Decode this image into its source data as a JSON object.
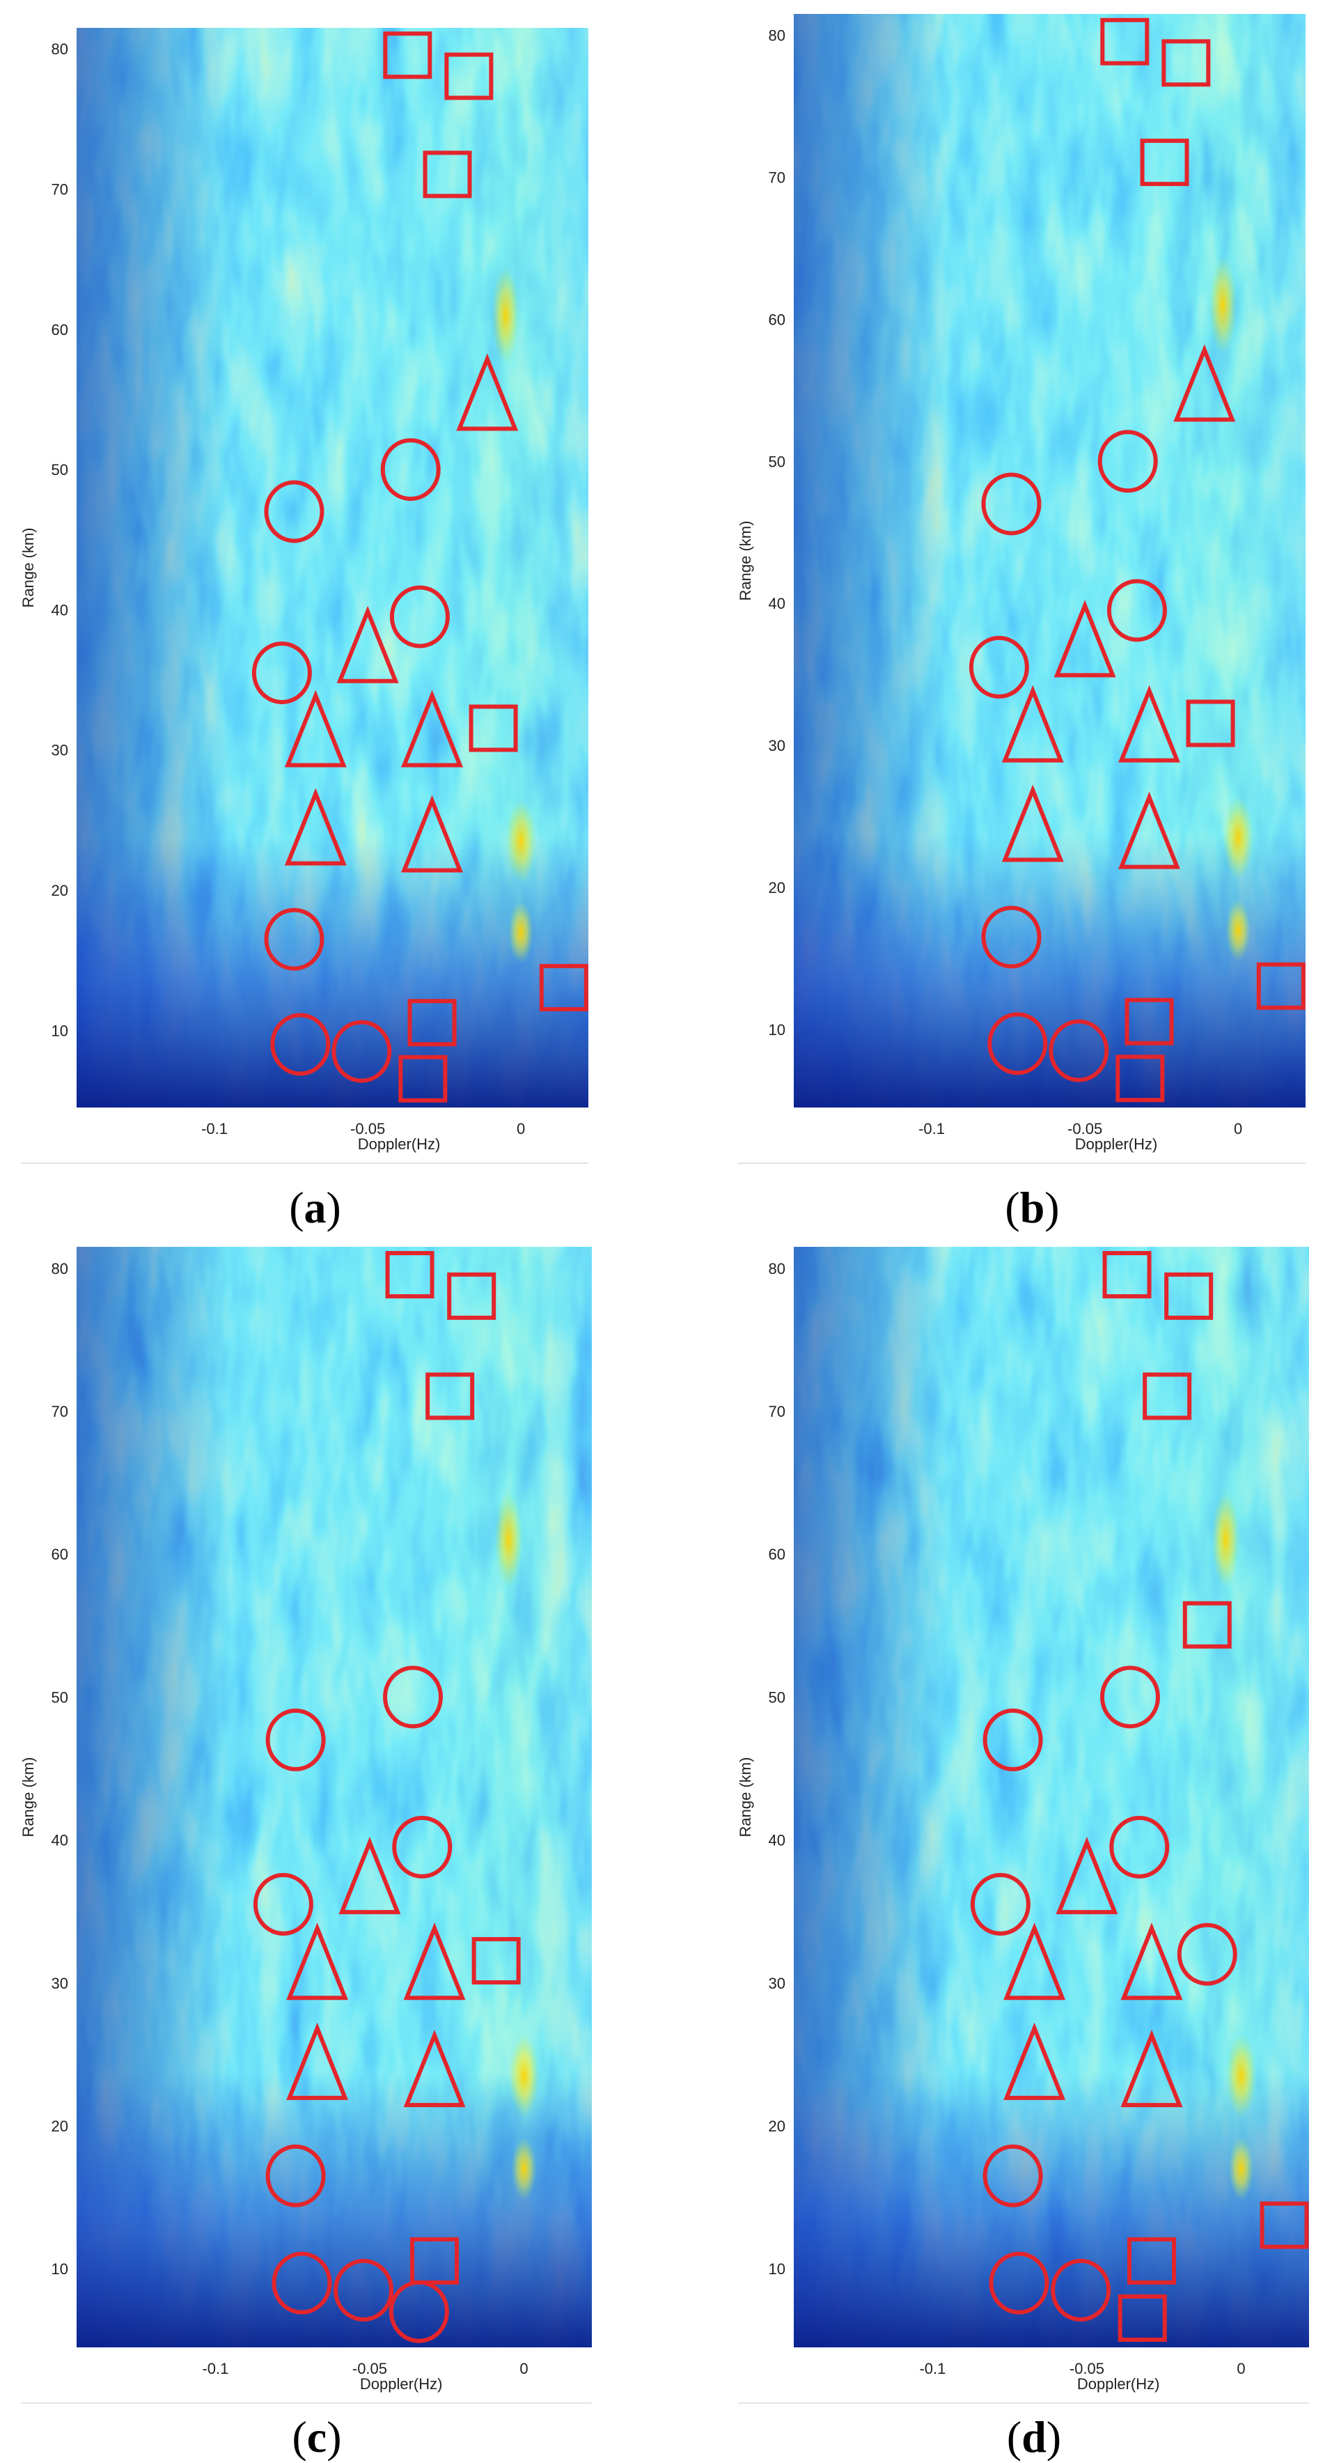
{
  "colors": {
    "marker": "#e3252b",
    "field_low": "#1030c8",
    "field_mid": "#20c8ee",
    "field_high": "#ffe800"
  },
  "chart_data": [
    {
      "type": "heatmap",
      "caption": "a",
      "xlabel": "Doppler(Hz)",
      "ylabel": "Range (km)",
      "xlim": [
        -0.145,
        0.022
      ],
      "ylim": [
        4.5,
        81.5
      ],
      "xticks": [
        -0.1,
        -0.05,
        0
      ],
      "xtick_labels": [
        "-0.1",
        "-0.05",
        "0"
      ],
      "yticks": [
        10,
        20,
        30,
        40,
        50,
        60,
        70,
        80
      ],
      "markers": {
        "circle": [
          [
            -0.074,
            47
          ],
          [
            -0.036,
            50
          ],
          [
            -0.033,
            39.5
          ],
          [
            -0.078,
            35.5
          ],
          [
            -0.074,
            16.5
          ],
          [
            -0.072,
            9
          ],
          [
            -0.052,
            8.5
          ]
        ],
        "triangle": [
          [
            -0.011,
            55
          ],
          [
            -0.05,
            37
          ],
          [
            -0.067,
            31
          ],
          [
            -0.029,
            31
          ],
          [
            -0.067,
            24
          ],
          [
            -0.029,
            23.5
          ]
        ],
        "square": [
          [
            -0.037,
            79.5
          ],
          [
            -0.017,
            78
          ],
          [
            -0.024,
            71
          ],
          [
            -0.009,
            31.5
          ],
          [
            0.014,
            13
          ],
          [
            -0.029,
            10.5
          ],
          [
            -0.032,
            6.5
          ]
        ]
      }
    },
    {
      "type": "heatmap",
      "caption": "b",
      "xlabel": "Doppler(Hz)",
      "ylabel": "Range (km)",
      "xlim": [
        -0.145,
        0.022
      ],
      "ylim": [
        4.5,
        81.5
      ],
      "xticks": [
        -0.1,
        -0.05,
        0
      ],
      "xtick_labels": [
        "-0.1",
        "-0.05",
        "0"
      ],
      "yticks": [
        10,
        20,
        30,
        40,
        50,
        60,
        70,
        80
      ],
      "markers": {
        "circle": [
          [
            -0.074,
            47
          ],
          [
            -0.036,
            50
          ],
          [
            -0.033,
            39.5
          ],
          [
            -0.078,
            35.5
          ],
          [
            -0.074,
            16.5
          ],
          [
            -0.072,
            9
          ],
          [
            -0.052,
            8.5
          ]
        ],
        "triangle": [
          [
            -0.011,
            55
          ],
          [
            -0.05,
            37
          ],
          [
            -0.067,
            31
          ],
          [
            -0.029,
            31
          ],
          [
            -0.067,
            24
          ],
          [
            -0.029,
            23.5
          ]
        ],
        "square": [
          [
            -0.037,
            79.5
          ],
          [
            -0.017,
            78
          ],
          [
            -0.024,
            71
          ],
          [
            -0.009,
            31.5
          ],
          [
            0.014,
            13
          ],
          [
            -0.029,
            10.5
          ],
          [
            -0.032,
            6.5
          ]
        ]
      }
    },
    {
      "type": "heatmap",
      "caption": "c",
      "xlabel": "Doppler(Hz)",
      "ylabel": "Range (km)",
      "xlim": [
        -0.145,
        0.022
      ],
      "ylim": [
        4.5,
        81.5
      ],
      "xticks": [
        -0.1,
        -0.05,
        0
      ],
      "xtick_labels": [
        "-0.1",
        "-0.05",
        "0"
      ],
      "yticks": [
        10,
        20,
        30,
        40,
        50,
        60,
        70,
        80
      ],
      "markers": {
        "circle": [
          [
            -0.074,
            47
          ],
          [
            -0.036,
            50
          ],
          [
            -0.033,
            39.5
          ],
          [
            -0.078,
            35.5
          ],
          [
            -0.074,
            16.5
          ],
          [
            -0.072,
            9
          ],
          [
            -0.052,
            8.5
          ],
          [
            -0.034,
            7
          ]
        ],
        "triangle": [
          [
            -0.05,
            37
          ],
          [
            -0.067,
            31
          ],
          [
            -0.029,
            31
          ],
          [
            -0.067,
            24
          ],
          [
            -0.029,
            23.5
          ]
        ],
        "square": [
          [
            -0.037,
            79.5
          ],
          [
            -0.017,
            78
          ],
          [
            -0.024,
            71
          ],
          [
            -0.009,
            31.5
          ],
          [
            -0.029,
            10.5
          ]
        ]
      }
    },
    {
      "type": "heatmap",
      "caption": "d",
      "xlabel": "Doppler(Hz)",
      "ylabel": "Range (km)",
      "xlim": [
        -0.145,
        0.022
      ],
      "ylim": [
        4.5,
        81.5
      ],
      "xticks": [
        -0.1,
        -0.05,
        0
      ],
      "xtick_labels": [
        "-0.1",
        "-0.05",
        "0"
      ],
      "yticks": [
        10,
        20,
        30,
        40,
        50,
        60,
        70,
        80
      ],
      "markers": {
        "circle": [
          [
            -0.074,
            47
          ],
          [
            -0.036,
            50
          ],
          [
            -0.033,
            39.5
          ],
          [
            -0.078,
            35.5
          ],
          [
            -0.011,
            32
          ],
          [
            -0.074,
            16.5
          ],
          [
            -0.072,
            9
          ],
          [
            -0.052,
            8.5
          ]
        ],
        "triangle": [
          [
            -0.05,
            37
          ],
          [
            -0.067,
            31
          ],
          [
            -0.029,
            31
          ],
          [
            -0.067,
            24
          ],
          [
            -0.029,
            23.5
          ]
        ],
        "square": [
          [
            -0.037,
            79.5
          ],
          [
            -0.017,
            78
          ],
          [
            -0.024,
            71
          ],
          [
            -0.011,
            55
          ],
          [
            0.014,
            13
          ],
          [
            -0.029,
            10.5
          ],
          [
            -0.032,
            6.5
          ]
        ]
      }
    }
  ]
}
